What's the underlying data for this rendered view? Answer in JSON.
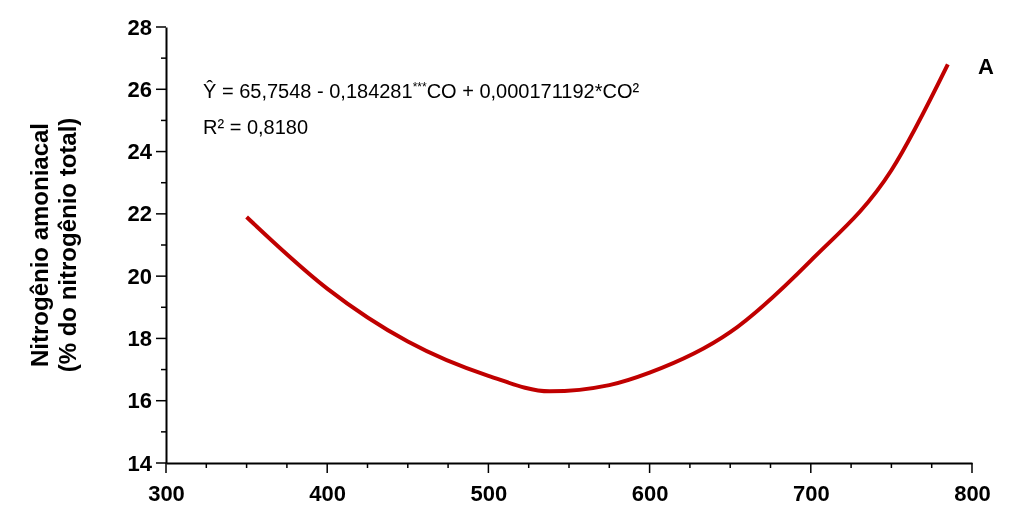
{
  "chart_data": {
    "type": "line",
    "ylabel": "Nitrogênio amoniacal\n(% do nitrogênio total)",
    "x": [
      350,
      400,
      450,
      500,
      538,
      575,
      600,
      650,
      700,
      750,
      785
    ],
    "series": [
      {
        "color": "#c00000",
        "values": [
          21.9,
          19.6,
          17.9,
          16.8,
          16.3,
          16.5,
          16.9,
          18.2,
          20.5,
          23.4,
          26.8
        ]
      }
    ],
    "xlim": [
      300,
      800
    ],
    "xticks": [
      300,
      {
        "value": 325,
        "label": null
      },
      {
        "value": 350,
        "label": null
      },
      {
        "value": 375,
        "label": null
      },
      400,
      {
        "value": 425,
        "label": null
      },
      {
        "value": 450,
        "label": null
      },
      {
        "value": 475,
        "label": null
      },
      500,
      {
        "value": 525,
        "label": null
      },
      {
        "value": 550,
        "label": null
      },
      {
        "value": 575,
        "label": null
      },
      600,
      {
        "value": 625,
        "label": null
      },
      {
        "value": 650,
        "label": null
      },
      {
        "value": 675,
        "label": null
      },
      700,
      {
        "value": 725,
        "label": null
      },
      {
        "value": 750,
        "label": null
      },
      {
        "value": 775,
        "label": null
      },
      800
    ],
    "ylim": [
      14,
      28
    ],
    "yticks": [
      14,
      {
        "value": 15,
        "label": null
      },
      16,
      {
        "value": 17,
        "label": null
      },
      18,
      {
        "value": 19,
        "label": null
      },
      20,
      {
        "value": 21,
        "label": null
      },
      22,
      {
        "value": 23,
        "label": null
      },
      24,
      {
        "value": 25,
        "label": null
      },
      26,
      {
        "value": 27,
        "label": null
      },
      28
    ],
    "marker": "none",
    "line_style": "solid",
    "annotations": [
      "Ŷ = 65,7548 - 0,184281$^{***}$CO + 0,000171192*CO²",
      "R² = 0,8180",
      "A"
    ]
  }
}
